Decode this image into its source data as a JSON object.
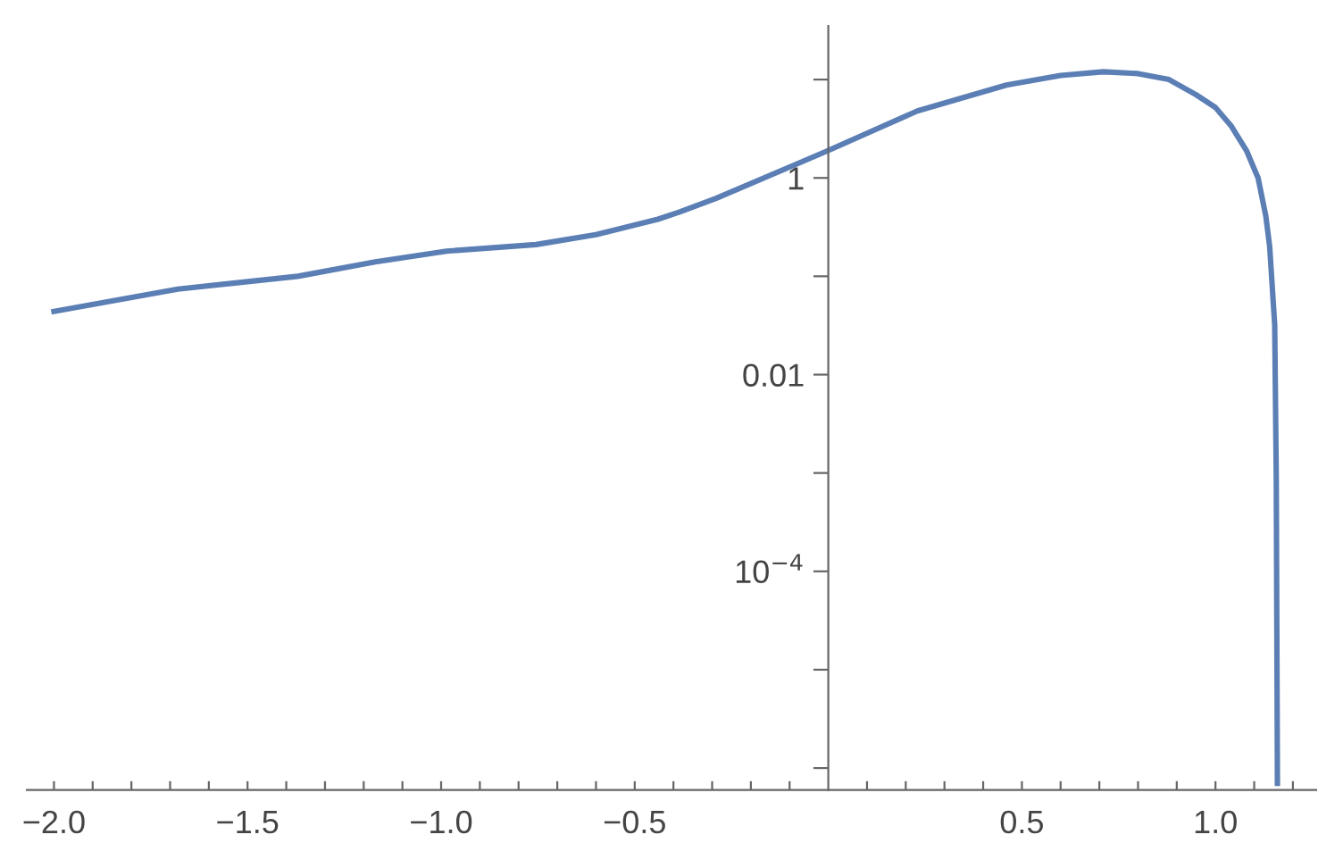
{
  "chart_data": {
    "type": "line",
    "log": "y",
    "grid": false,
    "marker": "none",
    "line_style": "solid",
    "x": [
      -2.0,
      -1.68,
      -1.37,
      -1.17,
      -0.986,
      -0.755,
      -0.6,
      -0.44,
      -0.384,
      -0.29,
      -0.07,
      0,
      0.23,
      0.46,
      0.6,
      0.71,
      0.8,
      0.88,
      0.95,
      1.0,
      1.04,
      1.08,
      1.11,
      1.13,
      1.14,
      1.153,
      1.157,
      1.16
    ],
    "series": [
      {
        "color": "#5b7fb5",
        "values": [
          0.044,
          0.074,
          0.1,
          0.14,
          0.18,
          0.21,
          0.265,
          0.38,
          0.45,
          0.62,
          1.45,
          1.9,
          4.8,
          8.8,
          11,
          12,
          11.5,
          10,
          7,
          5.2,
          3.4,
          1.9,
          1.0,
          0.41,
          0.2,
          0.032,
          0.0009,
          7e-07
        ]
      }
    ],
    "xlim": [
      -2.07,
      1.26
    ],
    "ylim": [
      6e-07,
      35
    ],
    "xticks": [
      {
        "value": -2.0,
        "label": "−2.0"
      },
      {
        "value": -1.9,
        "label": null
      },
      {
        "value": -1.8,
        "label": null
      },
      {
        "value": -1.7,
        "label": null
      },
      {
        "value": -1.6,
        "label": null
      },
      {
        "value": -1.5,
        "label": "−1.5"
      },
      {
        "value": -1.4,
        "label": null
      },
      {
        "value": -1.3,
        "label": null
      },
      {
        "value": -1.2,
        "label": null
      },
      {
        "value": -1.1,
        "label": null
      },
      {
        "value": -1.0,
        "label": "−1.0"
      },
      {
        "value": -0.9,
        "label": null
      },
      {
        "value": -0.8,
        "label": null
      },
      {
        "value": -0.7,
        "label": null
      },
      {
        "value": -0.6,
        "label": null
      },
      {
        "value": -0.5,
        "label": "−0.5"
      },
      {
        "value": -0.4,
        "label": null
      },
      {
        "value": -0.3,
        "label": null
      },
      {
        "value": -0.2,
        "label": null
      },
      {
        "value": -0.1,
        "label": null
      },
      {
        "value": 0.1,
        "label": null
      },
      {
        "value": 0.2,
        "label": null
      },
      {
        "value": 0.3,
        "label": null
      },
      {
        "value": 0.4,
        "label": null
      },
      0.5,
      {
        "value": 0.6,
        "label": null
      },
      {
        "value": 0.7,
        "label": null
      },
      {
        "value": 0.8,
        "label": null
      },
      {
        "value": 0.9,
        "label": null
      },
      {
        "value": 1.0,
        "label": "1.0"
      },
      {
        "value": 1.1,
        "label": null
      },
      {
        "value": 1.2,
        "label": null
      }
    ],
    "yticks": [
      {
        "value": 1e-06,
        "label": null
      },
      {
        "value": 1e-05,
        "label": null
      },
      {
        "value": 0.0001,
        "label": "10$^{−4}$"
      },
      {
        "value": 0.001,
        "label": null
      },
      0.01,
      {
        "value": 0.1,
        "label": null
      },
      1,
      {
        "value": 10,
        "label": null
      }
    ]
  }
}
